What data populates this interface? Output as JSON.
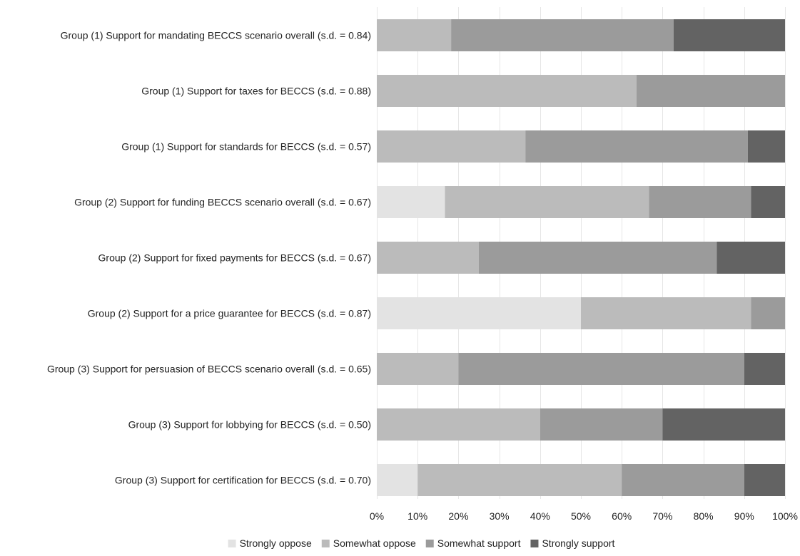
{
  "chart_data": {
    "type": "bar",
    "orientation": "horizontal",
    "stacked": true,
    "normalized": true,
    "categories": [
      "Group (1) Support for mandating BECCS scenario overall (s.d. = 0.84)",
      "Group (1) Support for taxes for BECCS (s.d. = 0.88)",
      "Group (1) Support for standards for BECCS (s.d. = 0.57)",
      "Group (2) Support for funding BECCS scenario overall (s.d. = 0.67)",
      "Group (2) Support for fixed payments for BECCS (s.d. = 0.67)",
      "Group (2) Support for a price guarantee for BECCS (s.d. = 0.87)",
      "Group (3) Support for persuasion of BECCS scenario overall (s.d. = 0.65)",
      "Group (3) Support for lobbying for BECCS (s.d. = 0.50)",
      "Group (3) Support for certification for BECCS (s.d. = 0.70)"
    ],
    "series": [
      {
        "name": "Strongly oppose",
        "color": "#e3e3e3",
        "values": [
          0,
          0,
          0,
          16.7,
          0,
          50,
          0,
          0,
          10
        ]
      },
      {
        "name": "Somewhat oppose",
        "color": "#bbbbbb",
        "values": [
          18.2,
          63.6,
          36.4,
          50,
          25,
          41.7,
          20,
          40,
          50
        ]
      },
      {
        "name": "Somewhat support",
        "color": "#9b9b9b",
        "values": [
          54.5,
          36.4,
          54.5,
          25,
          58.3,
          8.3,
          70,
          30,
          30
        ]
      },
      {
        "name": "Strongly support",
        "color": "#636363",
        "values": [
          27.3,
          0,
          9.1,
          8.3,
          16.7,
          0,
          10,
          30,
          10
        ]
      }
    ],
    "x_ticks": [
      "0%",
      "10%",
      "20%",
      "30%",
      "40%",
      "50%",
      "60%",
      "70%",
      "80%",
      "90%",
      "100%"
    ],
    "xlim": [
      0,
      100
    ],
    "grid": true,
    "legend_position": "bottom-center",
    "title": "",
    "xlabel": "",
    "ylabel": ""
  }
}
